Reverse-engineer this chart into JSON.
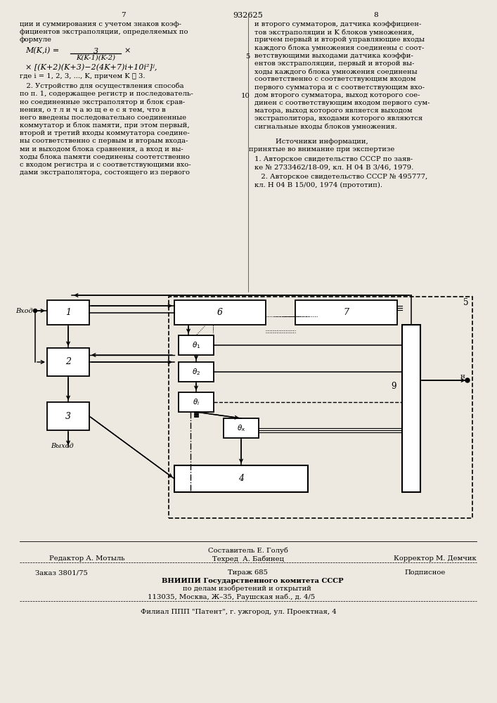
{
  "bg_color": "#f2f0eb",
  "page_number_left": "7",
  "page_number_center": "932625",
  "page_number_right": "8",
  "left_column_lines": [
    "ции и суммирования с учетом знаков коэф-",
    "фициентов экстраполяции, определяемых по",
    "формуле"
  ],
  "left_body_lines": [
    "   2. Устройство для осуществления способа",
    "по п. 1, содержащее регистр и последователь-",
    "но соединенные экстраполятор и блок срав-",
    "нения, о т л и ч а ю щ е е с я тем, что в",
    "него введены последовательно соединенные",
    "коммутатор и блок памяти, при этом первый,",
    "второй и третий входы коммутатора соедине-",
    "ны соответственно с первым и вторым входа-",
    "ми и выходом блока сравнения, а вход и вы-",
    "ходы блока памяти соединены соотетственно",
    "с входом регистра и с соответствующими вхо-",
    "дами экстраполятора, состоящего из первого"
  ],
  "right_column_lines": [
    "и второго сумматоров, датчика коэффициен-",
    "тов экстраполяции и K блоков умножения,",
    "причем первый и второй управляющие входы",
    "каждого блока умножения соединены с соот-",
    "ветствующими выходами датчика коэффи-",
    "ентов экстраполяции, первый и второй вы-",
    "ходы каждого блока умножения соединены",
    "соответственно с соответствующим входом",
    "первого сумматора и с соответствующим вхо-",
    "дом второго сумматора, выход которого сое-",
    "динен с соответствующим входом первого сум-",
    "матора, выход которого является выходом",
    "экстраполитора, входами которого являются",
    "сигнальные входы блоков умножения."
  ],
  "sources_header": "Источники информации,",
  "sources_subheader": "принятые во внимание при экспертизе",
  "source1a": "1. Авторское свидетельство СССР по заяв-",
  "source1b": "ке № 2733462/18-09, кл. Н 04 В 3/46, 1979.",
  "source2a": "   2. Авторское свидетельство СССР № 495777,",
  "source2b": "кл. Н 04 В 15/00, 1974 (прототип).",
  "footer_compiler": "Составитель Е. Голуб",
  "footer_editor": "Редактор А. Мотыль",
  "footer_techred": "Техред  А. Бабинец",
  "footer_corrector": "Корректор М. Демчик",
  "footer_order": "Заказ 3801/75",
  "footer_tirazh": "Тираж 685",
  "footer_podpisnoe": "Подписное",
  "footer_org1": "ВНИИПИ Государственного комитета СССР",
  "footer_org2": "по делам изобретений и открытий",
  "footer_org3": "113035, Москва, Ж–35, Раушская наб., д. 4/5",
  "footer_branch": "Филиал ППП \"Патент\", г. ужгород, ул. Проектная, 4"
}
